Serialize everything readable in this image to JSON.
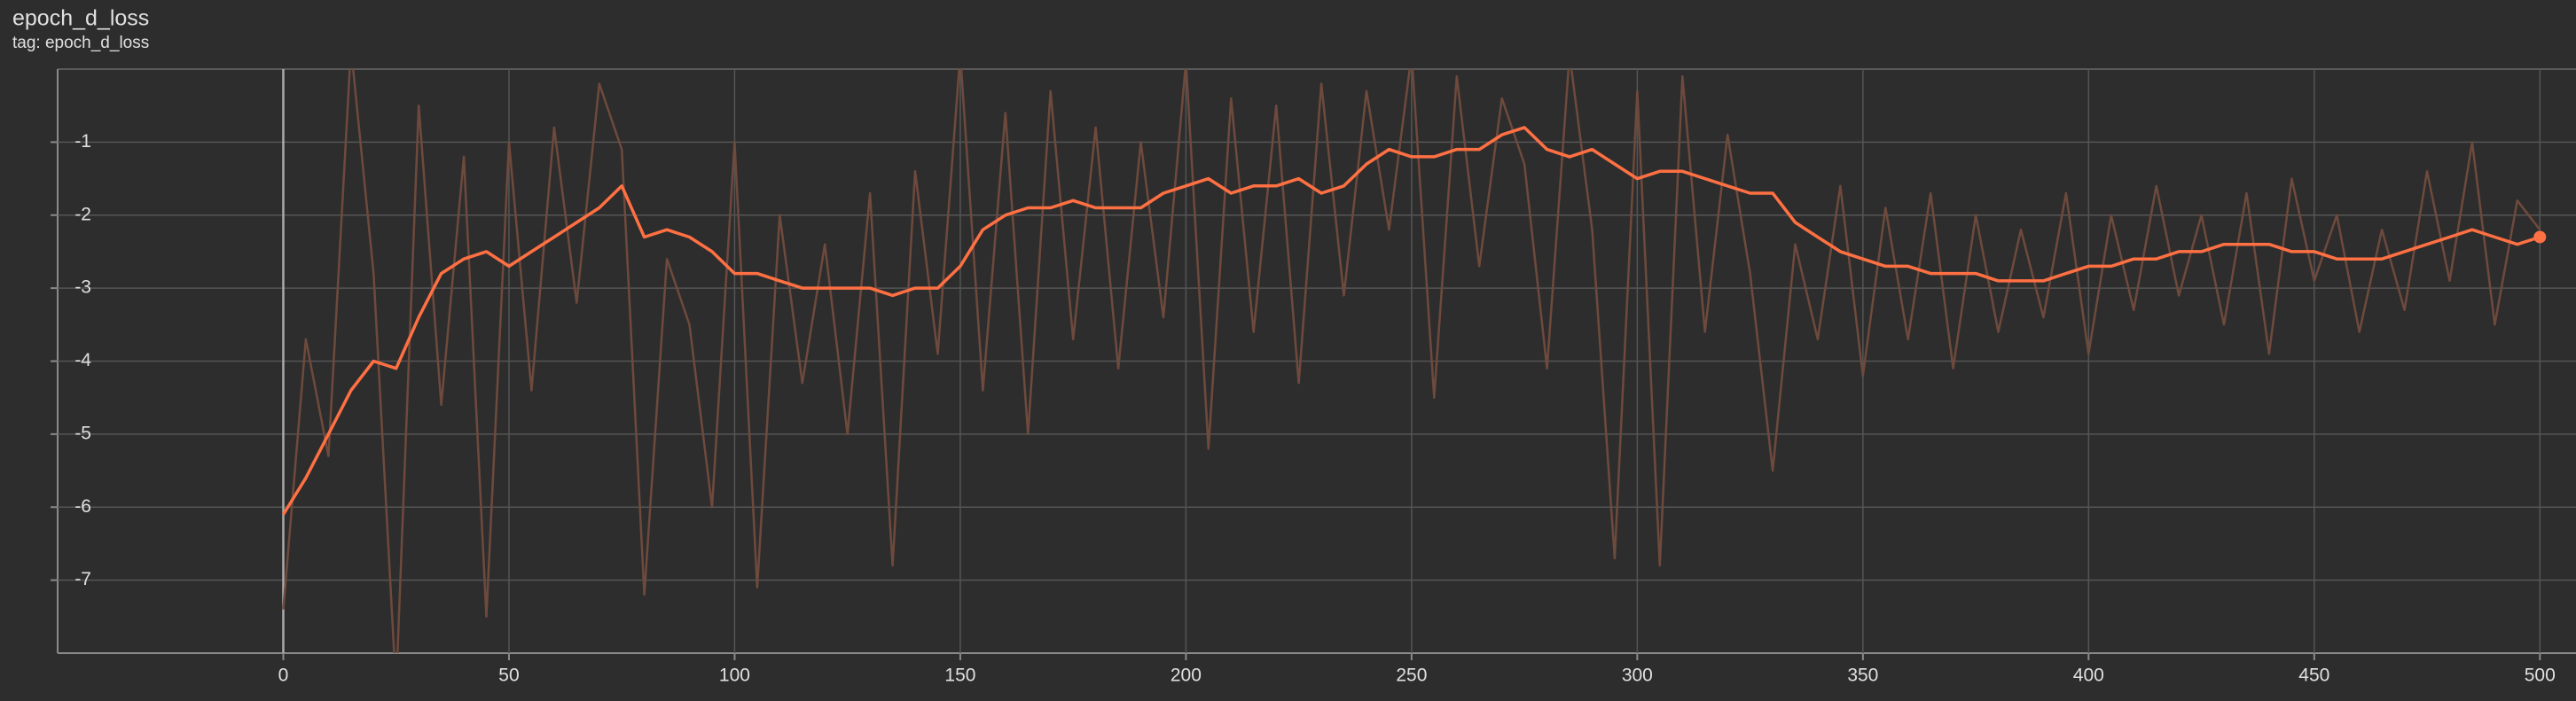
{
  "chart_data": {
    "type": "line",
    "title": "epoch_d_loss",
    "subtitle": "tag: epoch_d_loss",
    "x": [
      0,
      5,
      10,
      15,
      20,
      25,
      30,
      35,
      40,
      45,
      50,
      55,
      60,
      65,
      70,
      75,
      80,
      85,
      90,
      95,
      100,
      105,
      110,
      115,
      120,
      125,
      130,
      135,
      140,
      145,
      150,
      155,
      160,
      165,
      170,
      175,
      180,
      185,
      190,
      195,
      200,
      205,
      210,
      215,
      220,
      225,
      230,
      235,
      240,
      245,
      250,
      255,
      260,
      265,
      270,
      275,
      280,
      285,
      290,
      295,
      300,
      305,
      310,
      315,
      320,
      325,
      330,
      335,
      340,
      345,
      350,
      355,
      360,
      365,
      370,
      375,
      380,
      385,
      390,
      395,
      400,
      405,
      410,
      415,
      420,
      425,
      430,
      435,
      440,
      445,
      450,
      455,
      460,
      465,
      470,
      475,
      480,
      485,
      490,
      495,
      500
    ],
    "series": [
      {
        "color": "#6e4a3d",
        "values": [
          -7.4,
          -3.7,
          -5.3,
          0.3,
          -2.8,
          -8.5,
          -0.5,
          -4.6,
          -1.2,
          -7.5,
          -1.0,
          -4.4,
          -0.8,
          -3.2,
          -0.2,
          -1.1,
          -7.2,
          -2.6,
          -3.5,
          -6.0,
          -1.0,
          -7.1,
          -2.0,
          -4.3,
          -2.4,
          -5.0,
          -1.7,
          -6.8,
          -1.4,
          -3.9,
          0.2,
          -4.4,
          -0.6,
          -5.0,
          -0.3,
          -3.7,
          -0.8,
          -4.1,
          -1.0,
          -3.4,
          0.1,
          -5.2,
          -0.4,
          -3.6,
          -0.5,
          -4.3,
          -0.2,
          -3.1,
          -0.3,
          -2.2,
          0.2,
          -4.5,
          -0.1,
          -2.7,
          -0.4,
          -1.3,
          -4.1,
          0.2,
          -2.2,
          -6.7,
          -0.3,
          -6.8,
          -0.1,
          -3.6,
          -0.9,
          -2.8,
          -5.5,
          -2.4,
          -3.7,
          -1.6,
          -4.2,
          -1.9,
          -3.7,
          -1.7,
          -4.1,
          -2.0,
          -3.6,
          -2.2,
          -3.4,
          -1.7,
          -3.9,
          -2.0,
          -3.3,
          -1.6,
          -3.1,
          -2.0,
          -3.5,
          -1.7,
          -3.9,
          -1.5,
          -2.9,
          -2.0,
          -3.6,
          -2.2,
          -3.3,
          -1.4,
          -2.9,
          -1.0,
          -3.5,
          -1.8,
          -2.2
        ]
      },
      {
        "color": "#ff7043",
        "values": [
          -6.1,
          -5.6,
          -5.0,
          -4.4,
          -4.0,
          -4.1,
          -3.4,
          -2.8,
          -2.6,
          -2.5,
          -2.7,
          -2.5,
          -2.3,
          -2.1,
          -1.9,
          -1.6,
          -2.3,
          -2.2,
          -2.3,
          -2.5,
          -2.8,
          -2.8,
          -2.9,
          -3.0,
          -3.0,
          -3.0,
          -3.0,
          -3.1,
          -3.0,
          -3.0,
          -2.7,
          -2.2,
          -2.0,
          -1.9,
          -1.9,
          -1.8,
          -1.9,
          -1.9,
          -1.9,
          -1.7,
          -1.6,
          -1.5,
          -1.7,
          -1.6,
          -1.6,
          -1.5,
          -1.7,
          -1.6,
          -1.3,
          -1.1,
          -1.2,
          -1.2,
          -1.1,
          -1.1,
          -0.9,
          -0.8,
          -1.1,
          -1.2,
          -1.1,
          -1.3,
          -1.5,
          -1.4,
          -1.4,
          -1.5,
          -1.6,
          -1.7,
          -1.7,
          -2.1,
          -2.3,
          -2.5,
          -2.6,
          -2.7,
          -2.7,
          -2.8,
          -2.8,
          -2.8,
          -2.9,
          -2.9,
          -2.9,
          -2.8,
          -2.7,
          -2.7,
          -2.6,
          -2.6,
          -2.5,
          -2.5,
          -2.4,
          -2.4,
          -2.4,
          -2.5,
          -2.5,
          -2.6,
          -2.6,
          -2.6,
          -2.5,
          -2.4,
          -2.3,
          -2.2,
          -2.3,
          -2.4,
          -2.3
        ]
      }
    ],
    "xlim": [
      -50,
      508
    ],
    "ylim": [
      -8,
      0
    ],
    "xticks": [
      0,
      50,
      100,
      150,
      200,
      250,
      300,
      350,
      400,
      450,
      500
    ],
    "yticks": [
      -7,
      -6,
      -5,
      -4,
      -3,
      -2,
      -1
    ],
    "grid": true
  }
}
